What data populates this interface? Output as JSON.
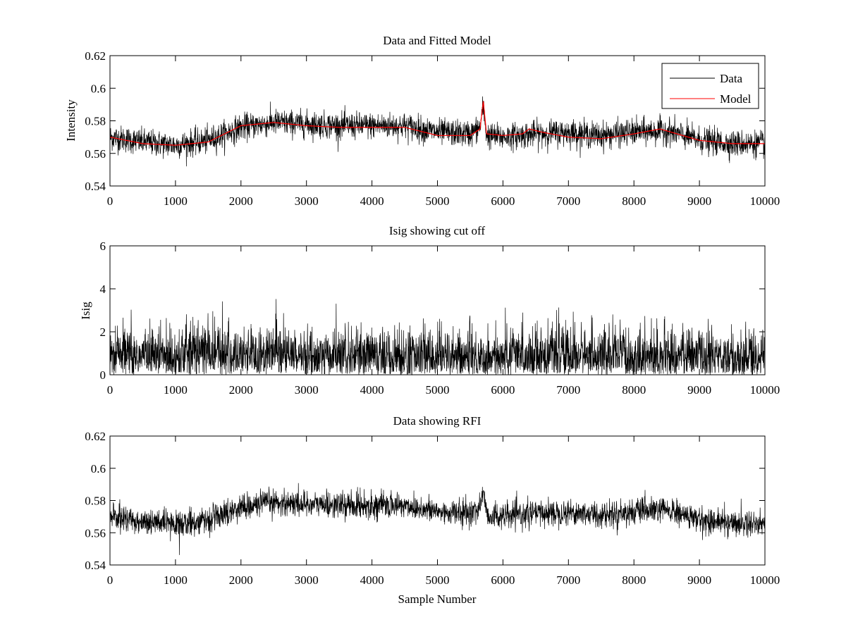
{
  "chart_data": [
    {
      "type": "line",
      "title": "Data and Fitted Model",
      "xlabel": "",
      "ylabel": "Intensity",
      "xlim": [
        0,
        10000
      ],
      "ylim": [
        0.54,
        0.62
      ],
      "xticks": [
        0,
        1000,
        2000,
        3000,
        4000,
        5000,
        6000,
        7000,
        8000,
        9000,
        10000
      ],
      "yticks": [
        0.54,
        0.56,
        0.58,
        0.6,
        0.62
      ],
      "xtick_labels": [
        "0",
        "1000",
        "2000",
        "3000",
        "4000",
        "5000",
        "6000",
        "7000",
        "8000",
        "9000",
        "10000"
      ],
      "ytick_labels": [
        "0.54",
        "0.56",
        "0.58",
        "0.6",
        "0.62"
      ],
      "grid": false,
      "legend_position": "top-right",
      "series": [
        {
          "name": "Data",
          "color": "#000000",
          "x": [
            0,
            500,
            1000,
            1500,
            2000,
            2500,
            3000,
            3500,
            4000,
            4500,
            5000,
            5500,
            5650,
            5700,
            5750,
            6000,
            6500,
            7000,
            7500,
            8000,
            8500,
            9000,
            9500,
            10000
          ],
          "y": [
            0.57,
            0.567,
            0.565,
            0.568,
            0.576,
            0.579,
            0.578,
            0.577,
            0.577,
            0.577,
            0.573,
            0.572,
            0.576,
            0.589,
            0.571,
            0.57,
            0.572,
            0.573,
            0.571,
            0.573,
            0.574,
            0.568,
            0.566,
            0.566
          ],
          "noise_amplitude": 0.004
        },
        {
          "name": "Model",
          "color": "#ff0000",
          "x": [
            0,
            500,
            1000,
            1500,
            2000,
            2500,
            3000,
            3500,
            4000,
            4500,
            5000,
            5500,
            5650,
            5700,
            5750,
            6000,
            6300,
            6400,
            6600,
            7000,
            7500,
            8000,
            8400,
            9000,
            9500,
            10000
          ],
          "y": [
            0.57,
            0.566,
            0.565,
            0.567,
            0.577,
            0.579,
            0.577,
            0.576,
            0.576,
            0.576,
            0.571,
            0.571,
            0.575,
            0.592,
            0.572,
            0.571,
            0.572,
            0.575,
            0.573,
            0.57,
            0.569,
            0.572,
            0.575,
            0.568,
            0.566,
            0.566
          ]
        }
      ]
    },
    {
      "type": "line",
      "title": "Isig showing cut off",
      "xlabel": "",
      "ylabel": "Isig",
      "xlim": [
        0,
        10000
      ],
      "ylim": [
        0,
        6
      ],
      "xticks": [
        0,
        1000,
        2000,
        3000,
        4000,
        5000,
        6000,
        7000,
        8000,
        9000,
        10000
      ],
      "yticks": [
        0,
        2,
        4,
        6
      ],
      "xtick_labels": [
        "0",
        "1000",
        "2000",
        "3000",
        "4000",
        "5000",
        "6000",
        "7000",
        "8000",
        "9000",
        "10000"
      ],
      "ytick_labels": [
        "0",
        "2",
        "4",
        "6"
      ],
      "grid": false,
      "series": [
        {
          "color": "#000000",
          "x": [
            0,
            1000,
            1400,
            2000,
            3000,
            4000,
            5000,
            6000,
            6350,
            7000,
            8000,
            9000,
            10000
          ],
          "y": [
            0.8,
            0.9,
            1.1,
            0.9,
            0.8,
            0.8,
            0.8,
            0.8,
            0.9,
            0.9,
            0.8,
            0.8,
            0.8
          ],
          "noise_amplitude": 1.0
        }
      ]
    },
    {
      "type": "line",
      "title": "Data showing RFI",
      "xlabel": "Sample Number",
      "ylabel": "",
      "xlim": [
        0,
        10000
      ],
      "ylim": [
        0.54,
        0.62
      ],
      "xticks": [
        0,
        1000,
        2000,
        3000,
        4000,
        5000,
        6000,
        7000,
        8000,
        9000,
        10000
      ],
      "yticks": [
        0.54,
        0.56,
        0.58,
        0.6,
        0.62
      ],
      "xtick_labels": [
        "0",
        "1000",
        "2000",
        "3000",
        "4000",
        "5000",
        "6000",
        "7000",
        "8000",
        "9000",
        "10000"
      ],
      "ytick_labels": [
        "0.54",
        "0.56",
        "0.58",
        "0.6",
        "0.62"
      ],
      "grid": false,
      "series": [
        {
          "color": "#000000",
          "x": [
            0,
            500,
            1000,
            1500,
            2000,
            2500,
            3000,
            3500,
            4000,
            4500,
            5000,
            5500,
            5650,
            5700,
            5750,
            6000,
            6500,
            7000,
            7500,
            8000,
            8500,
            9000,
            9500,
            10000
          ],
          "y": [
            0.57,
            0.567,
            0.565,
            0.568,
            0.576,
            0.579,
            0.578,
            0.577,
            0.577,
            0.577,
            0.573,
            0.572,
            0.576,
            0.587,
            0.571,
            0.57,
            0.572,
            0.573,
            0.571,
            0.573,
            0.574,
            0.568,
            0.566,
            0.566
          ],
          "noise_amplitude": 0.004
        }
      ]
    }
  ]
}
